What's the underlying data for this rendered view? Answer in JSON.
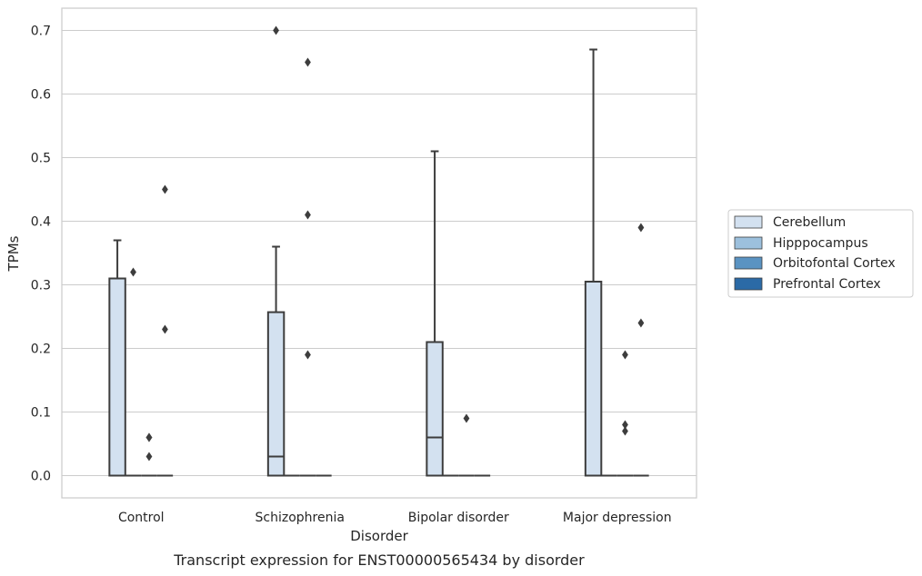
{
  "chart_data": {
    "type": "box",
    "caption": "Transcript expression for ENST00000565434 by disorder",
    "xlabel": "Disorder",
    "ylabel": "TPMs",
    "ylim": [
      -0.035,
      0.735
    ],
    "yticks": [
      0.0,
      0.1,
      0.2,
      0.3,
      0.4,
      0.5,
      0.6,
      0.7
    ],
    "ytick_labels": [
      "0.0",
      "0.1",
      "0.2",
      "0.3",
      "0.4",
      "0.5",
      "0.6",
      "0.7"
    ],
    "grid": "horizontal",
    "legend_position": "right",
    "categories": [
      "Control",
      "Schizophrenia",
      "Bipolar disorder",
      "Major depression"
    ],
    "series": [
      {
        "name": "Cerebellum",
        "color": "#d3e1f0",
        "boxes": [
          {
            "category": "Control",
            "whisker_low": 0.0,
            "q1": 0.0,
            "median": 0.0,
            "q3": 0.31,
            "whisker_high": 0.37,
            "outliers": []
          },
          {
            "category": "Schizophrenia",
            "whisker_low": 0.0,
            "q1": 0.0,
            "median": 0.03,
            "q3": 0.257,
            "whisker_high": 0.36,
            "outliers": [
              0.7
            ]
          },
          {
            "category": "Bipolar disorder",
            "whisker_low": 0.0,
            "q1": 0.0,
            "median": 0.06,
            "q3": 0.21,
            "whisker_high": 0.51,
            "outliers": []
          },
          {
            "category": "Major depression",
            "whisker_low": 0.0,
            "q1": 0.0,
            "median": 0.0,
            "q3": 0.305,
            "whisker_high": 0.67,
            "outliers": []
          }
        ]
      },
      {
        "name": "Hipppocampus",
        "color": "#9cc0dd",
        "boxes": [
          {
            "category": "Control",
            "whisker_low": 0.0,
            "q1": 0.0,
            "median": 0.0,
            "q3": 0.0,
            "whisker_high": 0.0,
            "outliers": [
              0.32
            ]
          },
          {
            "category": "Schizophrenia",
            "whisker_low": 0.0,
            "q1": 0.0,
            "median": 0.0,
            "q3": 0.0,
            "whisker_high": 0.0,
            "outliers": []
          },
          {
            "category": "Bipolar disorder",
            "whisker_low": 0.0,
            "q1": 0.0,
            "median": 0.0,
            "q3": 0.0,
            "whisker_high": 0.0,
            "outliers": []
          },
          {
            "category": "Major depression",
            "whisker_low": 0.0,
            "q1": 0.0,
            "median": 0.0,
            "q3": 0.0,
            "whisker_high": 0.0,
            "outliers": []
          }
        ]
      },
      {
        "name": "Orbitofontal Cortex",
        "color": "#5a93c2",
        "boxes": [
          {
            "category": "Control",
            "whisker_low": 0.0,
            "q1": 0.0,
            "median": 0.0,
            "q3": 0.0,
            "whisker_high": 0.0,
            "outliers": [
              0.06,
              0.03,
              0.06
            ]
          },
          {
            "category": "Schizophrenia",
            "whisker_low": 0.0,
            "q1": 0.0,
            "median": 0.0,
            "q3": 0.0,
            "whisker_high": 0.0,
            "outliers": [
              0.65,
              0.41,
              0.19
            ]
          },
          {
            "category": "Bipolar disorder",
            "whisker_low": 0.0,
            "q1": 0.0,
            "median": 0.0,
            "q3": 0.0,
            "whisker_high": 0.0,
            "outliers": [
              0.09
            ]
          },
          {
            "category": "Major depression",
            "whisker_low": 0.0,
            "q1": 0.0,
            "median": 0.0,
            "q3": 0.0,
            "whisker_high": 0.0,
            "outliers": [
              0.19,
              0.08,
              0.07
            ]
          }
        ]
      },
      {
        "name": "Prefrontal Cortex",
        "color": "#2b6aa6",
        "boxes": [
          {
            "category": "Control",
            "whisker_low": 0.0,
            "q1": 0.0,
            "median": 0.0,
            "q3": 0.0,
            "whisker_high": 0.0,
            "outliers": [
              0.45,
              0.23
            ]
          },
          {
            "category": "Schizophrenia",
            "whisker_low": 0.0,
            "q1": 0.0,
            "median": 0.0,
            "q3": 0.0,
            "whisker_high": 0.0,
            "outliers": []
          },
          {
            "category": "Bipolar disorder",
            "whisker_low": 0.0,
            "q1": 0.0,
            "median": 0.0,
            "q3": 0.0,
            "whisker_high": 0.0,
            "outliers": []
          },
          {
            "category": "Major depression",
            "whisker_low": 0.0,
            "q1": 0.0,
            "median": 0.0,
            "q3": 0.0,
            "whisker_high": 0.0,
            "outliers": [
              0.39,
              0.24
            ]
          }
        ]
      }
    ],
    "colors": {
      "axes_edge": "#cccccc",
      "grid": "#cccccc",
      "box_edge": "#3d3d3d",
      "text": "#262626"
    }
  }
}
